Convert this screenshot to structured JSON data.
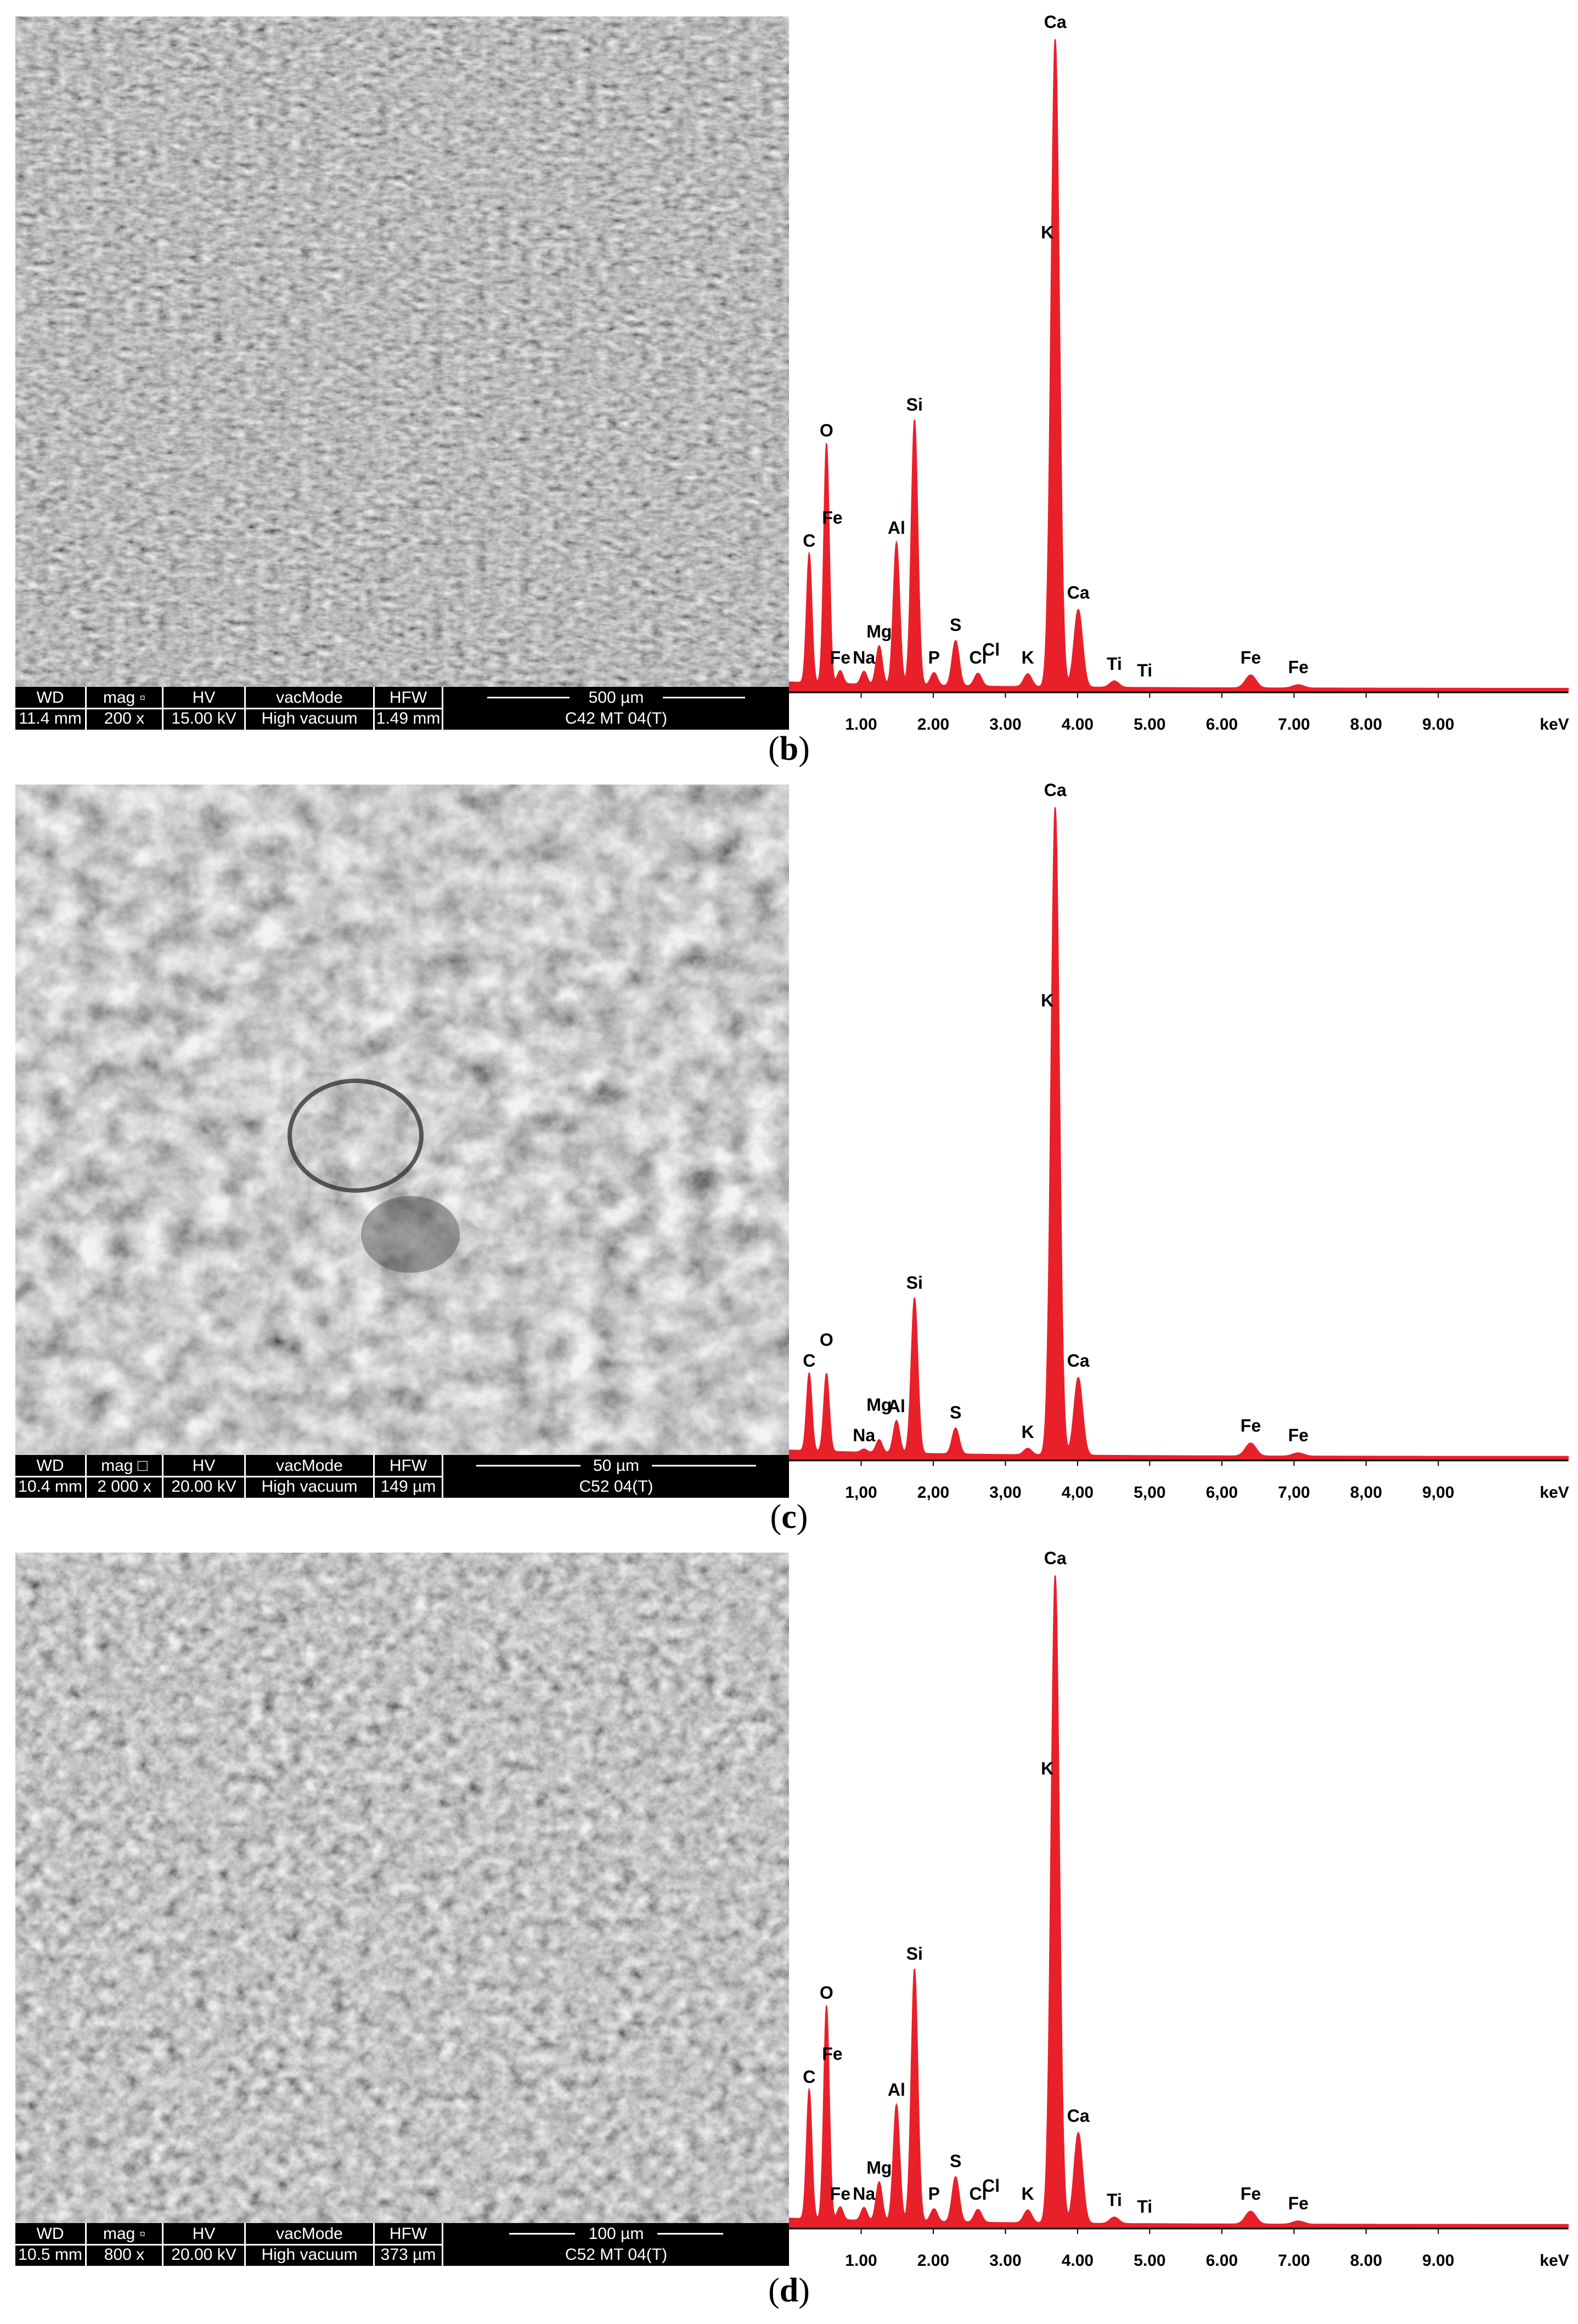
{
  "figure": {
    "colors": {
      "spectrum": "#e8202a",
      "axis": "#000000",
      "databar": "#000000"
    },
    "panels": [
      {
        "caption_open": "(",
        "caption_letter": "b",
        "caption_close": ")",
        "sem": {
          "header": [
            "WD",
            "mag",
            "HV",
            "vacMode",
            "HFW"
          ],
          "values": [
            "11.4 mm",
            "200 x",
            "15.00 kV",
            "High vacuum",
            "1.49 mm"
          ],
          "mag_icon": "square-small-icon",
          "scale_label": "500 µm",
          "sample_label": "C42 MT 04(T)"
        },
        "chart_data": {
          "type": "line",
          "xlabel": "keV",
          "xlim": [
            0,
            10.8
          ],
          "ticks": [
            "1.00",
            "2.00",
            "3.00",
            "4.00",
            "5.00",
            "6.00",
            "7.00",
            "8.00",
            "9.00"
          ],
          "series": [
            {
              "peaks": [
                {
                  "x": 0.28,
                  "h": 0.2
                },
                {
                  "x": 0.52,
                  "h": 0.37
                },
                {
                  "x": 0.71,
                  "h": 0.02
                },
                {
                  "x": 1.04,
                  "h": 0.02
                },
                {
                  "x": 1.25,
                  "h": 0.06
                },
                {
                  "x": 1.49,
                  "h": 0.22
                },
                {
                  "x": 1.74,
                  "h": 0.41
                },
                {
                  "x": 2.01,
                  "h": 0.02
                },
                {
                  "x": 2.31,
                  "h": 0.07
                },
                {
                  "x": 2.62,
                  "h": 0.02
                },
                {
                  "x": 3.31,
                  "h": 0.02
                },
                {
                  "x": 3.69,
                  "h": 1.0
                },
                {
                  "x": 4.01,
                  "h": 0.12
                },
                {
                  "x": 4.51,
                  "h": 0.01
                },
                {
                  "x": 6.4,
                  "h": 0.02
                },
                {
                  "x": 7.06,
                  "h": 0.005
                }
              ]
            }
          ],
          "peak_labels": [
            {
              "text": "Ca",
              "x": 3.69
            },
            {
              "text": "K",
              "x": 3.58
            },
            {
              "text": "Si",
              "x": 1.74
            },
            {
              "text": "O",
              "x": 0.52
            },
            {
              "text": "Fe",
              "x": 0.6
            },
            {
              "text": "C",
              "x": 0.28
            },
            {
              "text": "Al",
              "x": 1.49
            },
            {
              "text": "Mg",
              "x": 1.25
            },
            {
              "text": "Na",
              "x": 1.04
            },
            {
              "text": "Fe",
              "x": 0.71
            },
            {
              "text": "P",
              "x": 2.01
            },
            {
              "text": "S",
              "x": 2.31
            },
            {
              "text": "Cl",
              "x": 2.62
            },
            {
              "text": "Cl",
              "x": 2.8
            },
            {
              "text": "K",
              "x": 3.31
            },
            {
              "text": "Ca",
              "x": 4.01
            },
            {
              "text": "Ti",
              "x": 4.51
            },
            {
              "text": "Ti",
              "x": 4.93
            },
            {
              "text": "Fe",
              "x": 6.4
            },
            {
              "text": "Fe",
              "x": 7.06
            }
          ]
        }
      },
      {
        "caption_open": "(",
        "caption_letter": "c",
        "caption_close": ")",
        "sem": {
          "header": [
            "WD",
            "mag",
            "HV",
            "vacMode",
            "HFW"
          ],
          "values": [
            "10.4 mm",
            "2 000 x",
            "20.00 kV",
            "High vacuum",
            "149 µm"
          ],
          "mag_icon": "square-large-icon",
          "scale_label": "50 µm",
          "sample_label": "C52 04(T)"
        },
        "chart_data": {
          "type": "line",
          "xlabel": "keV",
          "xlim": [
            0,
            10.8
          ],
          "ticks": [
            "1,00",
            "2,00",
            "3,00",
            "4,00",
            "5,00",
            "6,00",
            "7,00",
            "8,00",
            "9,00"
          ],
          "series": [
            {
              "peaks": [
                {
                  "x": 0.28,
                  "h": 0.12
                },
                {
                  "x": 0.52,
                  "h": 0.12
                },
                {
                  "x": 1.04,
                  "h": 0.005
                },
                {
                  "x": 1.25,
                  "h": 0.02
                },
                {
                  "x": 1.49,
                  "h": 0.05
                },
                {
                  "x": 1.74,
                  "h": 0.24
                },
                {
                  "x": 2.31,
                  "h": 0.04
                },
                {
                  "x": 3.31,
                  "h": 0.01
                },
                {
                  "x": 3.69,
                  "h": 1.0
                },
                {
                  "x": 4.01,
                  "h": 0.12
                },
                {
                  "x": 6.4,
                  "h": 0.02
                },
                {
                  "x": 7.06,
                  "h": 0.005
                }
              ]
            }
          ],
          "peak_labels": [
            {
              "text": "Ca",
              "x": 3.69
            },
            {
              "text": "Si",
              "x": 1.74
            },
            {
              "text": "Ca",
              "x": 4.01
            },
            {
              "text": "C",
              "x": 0.28
            },
            {
              "text": "O",
              "x": 0.52
            },
            {
              "text": "Al",
              "x": 1.49
            },
            {
              "text": "Mg",
              "x": 1.25
            },
            {
              "text": "Na",
              "x": 1.04
            },
            {
              "text": "S",
              "x": 2.31
            },
            {
              "text": "K",
              "x": 3.31
            },
            {
              "text": "K",
              "x": 3.58
            },
            {
              "text": "Fe",
              "x": 6.4
            },
            {
              "text": "Fe",
              "x": 7.06
            }
          ]
        }
      },
      {
        "caption_open": "(",
        "caption_letter": "d",
        "caption_close": ")",
        "sem": {
          "header": [
            "WD",
            "mag",
            "HV",
            "vacMode",
            "HFW"
          ],
          "values": [
            "10.5 mm",
            "800 x",
            "20.00 kV",
            "High vacuum",
            "373 µm"
          ],
          "mag_icon": "square-small-icon",
          "scale_label": "100 µm",
          "sample_label": "C52 MT 04(T)"
        },
        "chart_data": {
          "type": "line",
          "xlabel": "keV",
          "xlim": [
            0,
            10.8
          ],
          "ticks": [
            "1.00",
            "2.00",
            "3.00",
            "4.00",
            "5.00",
            "6.00",
            "7.00",
            "8.00",
            "9.00"
          ],
          "series": [
            {
              "peaks": [
                {
                  "x": 0.28,
                  "h": 0.2
                },
                {
                  "x": 0.52,
                  "h": 0.33
                },
                {
                  "x": 0.71,
                  "h": 0.02
                },
                {
                  "x": 1.04,
                  "h": 0.02
                },
                {
                  "x": 1.25,
                  "h": 0.06
                },
                {
                  "x": 1.49,
                  "h": 0.18
                },
                {
                  "x": 1.74,
                  "h": 0.39
                },
                {
                  "x": 2.01,
                  "h": 0.02
                },
                {
                  "x": 2.31,
                  "h": 0.07
                },
                {
                  "x": 2.62,
                  "h": 0.02
                },
                {
                  "x": 3.31,
                  "h": 0.02
                },
                {
                  "x": 3.69,
                  "h": 1.0
                },
                {
                  "x": 4.01,
                  "h": 0.14
                },
                {
                  "x": 4.51,
                  "h": 0.01
                },
                {
                  "x": 6.4,
                  "h": 0.02
                },
                {
                  "x": 7.06,
                  "h": 0.005
                }
              ]
            }
          ],
          "peak_labels": [
            {
              "text": "Ca",
              "x": 3.69
            },
            {
              "text": "K",
              "x": 3.58
            },
            {
              "text": "Si",
              "x": 1.74
            },
            {
              "text": "O",
              "x": 0.52
            },
            {
              "text": "Fe",
              "x": 0.6
            },
            {
              "text": "C",
              "x": 0.28
            },
            {
              "text": "Al",
              "x": 1.49
            },
            {
              "text": "Mg",
              "x": 1.25
            },
            {
              "text": "Na",
              "x": 1.04
            },
            {
              "text": "Fe",
              "x": 0.71
            },
            {
              "text": "P",
              "x": 2.01
            },
            {
              "text": "S",
              "x": 2.31
            },
            {
              "text": "Cl",
              "x": 2.62
            },
            {
              "text": "Cl",
              "x": 2.8
            },
            {
              "text": "K",
              "x": 3.31
            },
            {
              "text": "Ca",
              "x": 4.01
            },
            {
              "text": "Ti",
              "x": 4.51
            },
            {
              "text": "Ti",
              "x": 4.93
            },
            {
              "text": "Fe",
              "x": 6.4
            },
            {
              "text": "Fe",
              "x": 7.06
            }
          ]
        }
      }
    ]
  }
}
